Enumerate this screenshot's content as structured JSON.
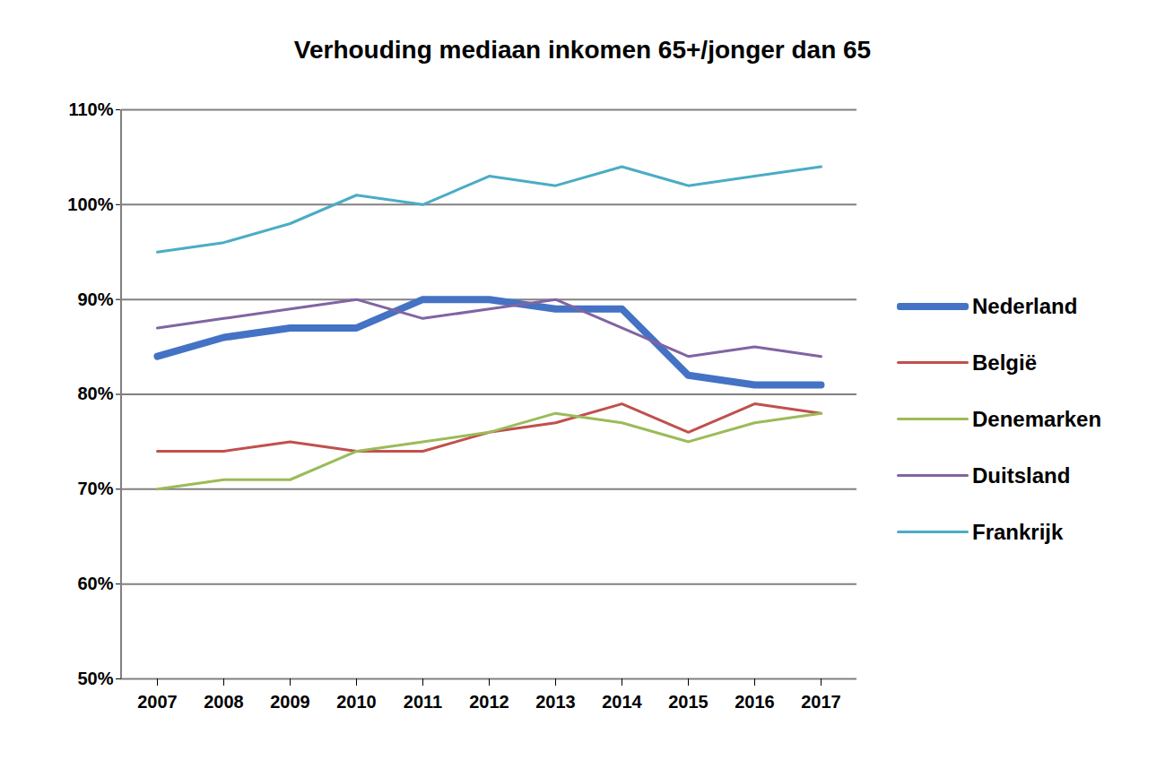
{
  "chart_data": {
    "type": "line",
    "title": "Verhouding mediaan inkomen 65+/jonger dan 65",
    "categories": [
      "2007",
      "2008",
      "2009",
      "2010",
      "2011",
      "2012",
      "2013",
      "2014",
      "2015",
      "2016",
      "2017"
    ],
    "series": [
      {
        "name": "Nederland",
        "color": "#4472c4",
        "line_style": "thick",
        "values": [
          84,
          86,
          87,
          87,
          90,
          90,
          89,
          89,
          82,
          81,
          81
        ]
      },
      {
        "name": "België",
        "color": "#c0504d",
        "line_style": "solid",
        "values": [
          74,
          74,
          75,
          74,
          74,
          76,
          77,
          79,
          76,
          79,
          78
        ]
      },
      {
        "name": "Denemarken",
        "color": "#9bbb59",
        "line_style": "solid",
        "values": [
          70,
          71,
          71,
          74,
          75,
          76,
          78,
          77,
          75,
          77,
          78
        ]
      },
      {
        "name": "Duitsland",
        "color": "#8064a2",
        "line_style": "solid",
        "values": [
          87,
          88,
          89,
          90,
          88,
          89,
          90,
          87,
          84,
          85,
          84
        ]
      },
      {
        "name": "Frankrijk",
        "color": "#4bacc6",
        "line_style": "solid",
        "values": [
          95,
          96,
          98,
          101,
          100,
          103,
          102,
          104,
          102,
          103,
          104
        ]
      }
    ],
    "ylim": [
      50,
      110
    ],
    "yticks": [
      {
        "value": 50,
        "label": "50%"
      },
      {
        "value": 60,
        "label": "60%"
      },
      {
        "value": 70,
        "label": "70%"
      },
      {
        "value": 80,
        "label": "80%"
      },
      {
        "value": 90,
        "label": "90%"
      },
      {
        "value": 100,
        "label": "100%"
      },
      {
        "value": 110,
        "label": "110%"
      }
    ],
    "grid": true,
    "legend": "right"
  }
}
